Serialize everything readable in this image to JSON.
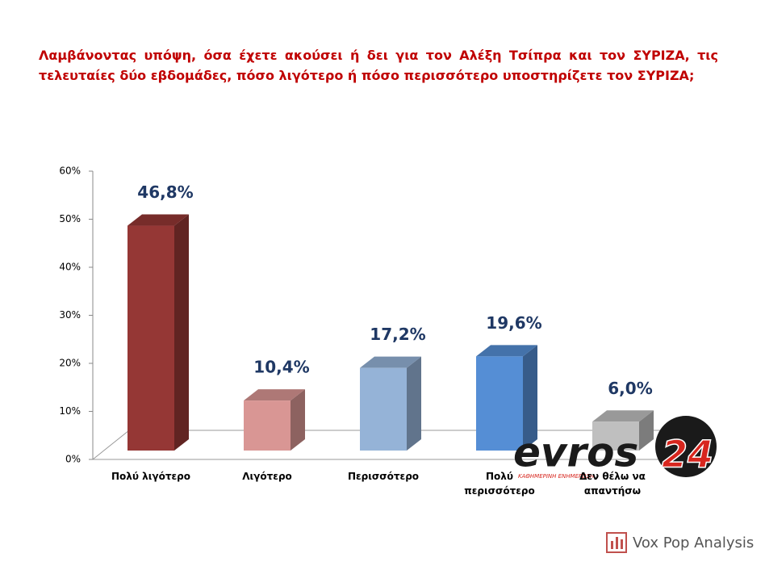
{
  "title": "Λαμβάνοντας υπόψη, όσα έχετε ακούσει ή δει για τον Αλέξη Τσίπρα και τον ΣΥΡΙΖΑ, τις τελευταίες δύο εβδομάδες, πόσο λιγότερο ή πόσο περισσότερο υποστηρίζετε τον ΣΥΡΙΖΑ;",
  "chart_data": {
    "type": "bar3d",
    "categories": [
      "Πολύ λιγότερο",
      "Λιγότερο",
      "Περισσότερο",
      "Πολύ περισσότερο",
      "Δεν θέλω να απαντήσω"
    ],
    "values": [
      46.8,
      10.4,
      17.2,
      19.6,
      6.0
    ],
    "value_labels": [
      "46,8%",
      "10,4%",
      "17,2%",
      "19,6%",
      "6,0%"
    ],
    "colors": [
      "#953735",
      "#d99694",
      "#95b3d7",
      "#558ed5",
      "#bfbfbf"
    ],
    "ylim": [
      0,
      60
    ],
    "yticks": [
      {
        "value": 0,
        "label": "0%"
      },
      {
        "value": 10,
        "label": "10%"
      },
      {
        "value": 20,
        "label": "20%"
      },
      {
        "value": 30,
        "label": "30%"
      },
      {
        "value": 40,
        "label": "40%"
      },
      {
        "value": 50,
        "label": "50%"
      },
      {
        "value": 60,
        "label": "60%"
      }
    ]
  },
  "watermark": {
    "name": "evros",
    "number": "24",
    "tagline": "ΚΑΘΗΜΕΡΙΝΗ ΕΝΗΜΕΡΩΣΗ"
  },
  "source": "Vox Pop Analysis"
}
